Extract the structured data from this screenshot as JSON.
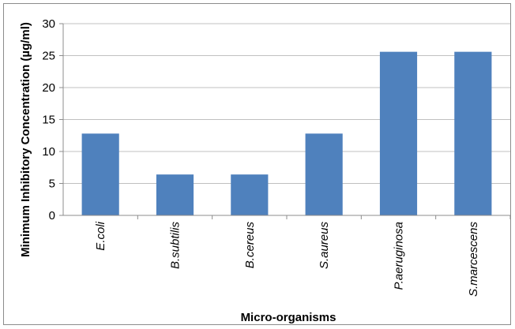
{
  "chart_data": {
    "type": "bar",
    "title": "",
    "xlabel": "Micro-organisms",
    "ylabel": "Minimum Inhibitory Concentration (µg/ml)",
    "categories": [
      "E.coli",
      "B.subtilis",
      "B.cereus",
      "S.aureus",
      "P.aeruginosa",
      "S.marcescens"
    ],
    "values": [
      12.8,
      6.4,
      6.4,
      12.8,
      25.6,
      25.6
    ],
    "ylim": [
      0,
      30
    ],
    "yticks": [
      "0",
      "5",
      "10",
      "15",
      "20",
      "25",
      "30"
    ],
    "grid": true,
    "legend": "none",
    "bar_color": "#4f81bd",
    "grid_color": "#c0c0c0"
  }
}
